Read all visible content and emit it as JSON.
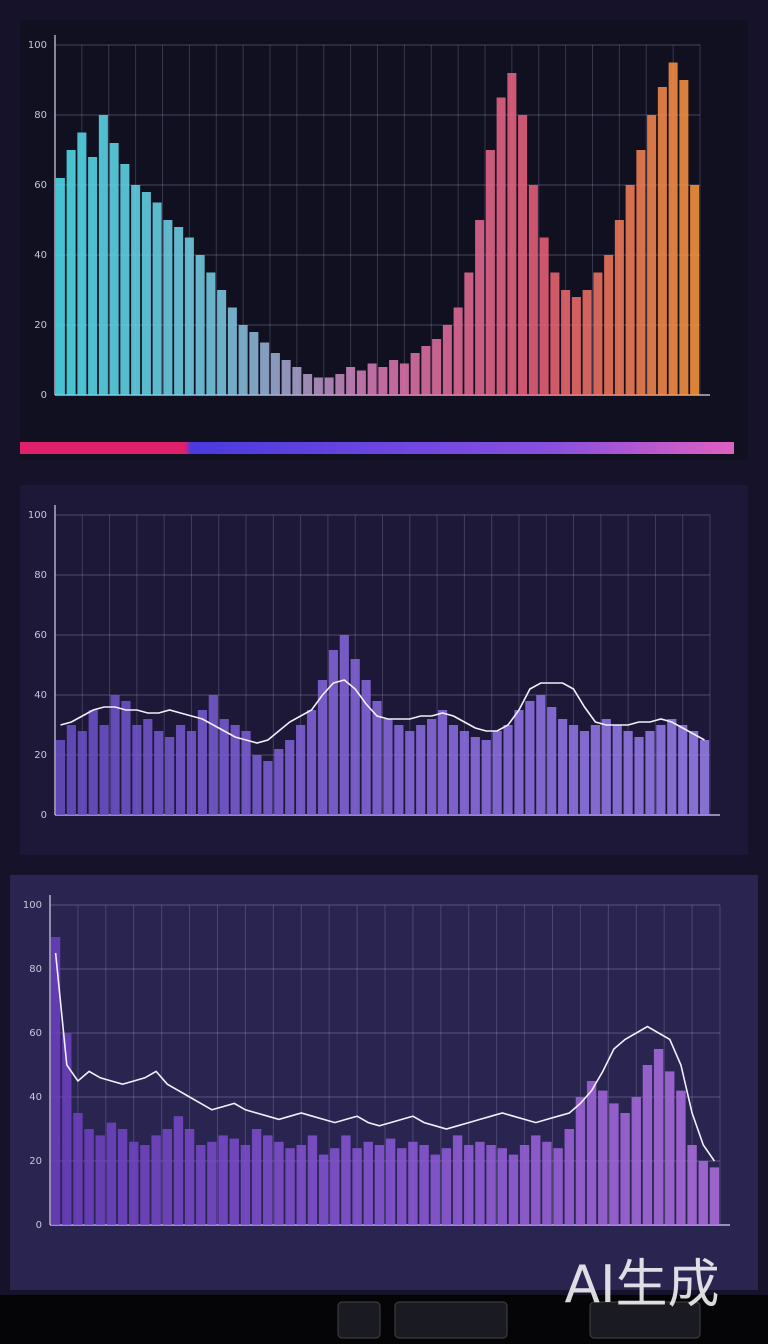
{
  "chart_data": [
    {
      "type": "bar",
      "ylim": [
        0,
        100
      ],
      "yticks": [
        0,
        20,
        40,
        60,
        80,
        100
      ],
      "grid": true,
      "colors": [
        "#4fe3f0",
        "#7ad0e8",
        "#e07ab8",
        "#f0607a",
        "#ff9a3a"
      ],
      "values": [
        62,
        70,
        75,
        68,
        80,
        72,
        66,
        60,
        58,
        55,
        50,
        48,
        45,
        40,
        35,
        30,
        25,
        20,
        18,
        15,
        12,
        10,
        8,
        6,
        5,
        5,
        6,
        8,
        7,
        9,
        8,
        10,
        9,
        12,
        14,
        16,
        20,
        25,
        35,
        50,
        70,
        85,
        92,
        80,
        60,
        45,
        35,
        30,
        28,
        30,
        35,
        40,
        50,
        60,
        70,
        80,
        88,
        95,
        90,
        60
      ]
    },
    {
      "type": "bar",
      "ylim": [
        0,
        100
      ],
      "yticks": [
        0,
        20,
        40,
        60,
        80,
        100
      ],
      "grid": true,
      "colors": [
        "#6a4fc8",
        "#8a6ae0",
        "#9a80ee"
      ],
      "values": [
        25,
        30,
        28,
        35,
        30,
        40,
        38,
        30,
        32,
        28,
        26,
        30,
        28,
        35,
        40,
        32,
        30,
        28,
        20,
        18,
        22,
        25,
        30,
        35,
        45,
        55,
        60,
        52,
        45,
        38,
        32,
        30,
        28,
        30,
        32,
        35,
        30,
        28,
        26,
        25,
        28,
        30,
        35,
        38,
        40,
        36,
        32,
        30,
        28,
        30,
        32,
        30,
        28,
        26,
        28,
        30,
        32,
        30,
        28,
        25
      ],
      "line": {
        "color": "#f2eefc",
        "values": [
          30,
          31,
          33,
          35,
          36,
          36,
          35,
          35,
          34,
          34,
          35,
          34,
          33,
          32,
          30,
          28,
          26,
          25,
          24,
          25,
          28,
          31,
          33,
          35,
          40,
          44,
          45,
          42,
          37,
          33,
          32,
          32,
          32,
          33,
          33,
          34,
          33,
          31,
          29,
          28,
          28,
          30,
          35,
          42,
          44,
          44,
          44,
          42,
          36,
          31,
          30,
          30,
          30,
          31,
          31,
          32,
          31,
          29,
          27,
          25
        ]
      }
    },
    {
      "type": "bar",
      "ylim": [
        0,
        100
      ],
      "yticks": [
        0,
        20,
        40,
        60,
        80,
        100
      ],
      "grid": true,
      "colors": [
        "#6b3fc0",
        "#8a58d8",
        "#b070e0"
      ],
      "values": [
        90,
        60,
        35,
        30,
        28,
        32,
        30,
        26,
        25,
        28,
        30,
        34,
        30,
        25,
        26,
        28,
        27,
        25,
        30,
        28,
        26,
        24,
        25,
        28,
        22,
        24,
        28,
        24,
        26,
        25,
        27,
        24,
        26,
        25,
        22,
        24,
        28,
        25,
        26,
        25,
        24,
        22,
        25,
        28,
        26,
        24,
        30,
        40,
        45,
        42,
        38,
        35,
        40,
        50,
        55,
        48,
        42,
        25,
        20,
        18
      ],
      "line": {
        "color": "#f2eefc",
        "values": [
          85,
          50,
          45,
          48,
          46,
          45,
          44,
          45,
          46,
          48,
          44,
          42,
          40,
          38,
          36,
          37,
          38,
          36,
          35,
          34,
          33,
          34,
          35,
          34,
          33,
          32,
          33,
          34,
          32,
          31,
          32,
          33,
          34,
          32,
          31,
          30,
          31,
          32,
          33,
          34,
          35,
          34,
          33,
          32,
          33,
          34,
          35,
          38,
          42,
          48,
          55,
          58,
          60,
          62,
          60,
          58,
          50,
          35,
          25,
          20
        ]
      }
    }
  ],
  "watermark": "AI生成"
}
